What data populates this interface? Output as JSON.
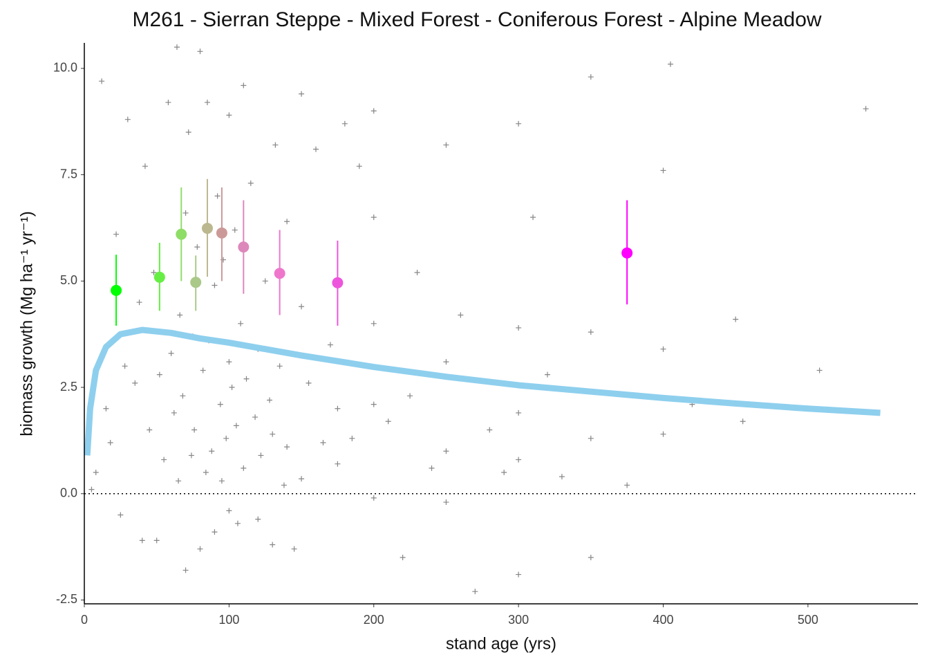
{
  "chart_data": {
    "type": "scatter",
    "title": "M261 - Sierran Steppe - Mixed Forest - Coniferous Forest - Alpine Meadow",
    "xlabel": "stand age (yrs)",
    "ylabel": "biomass growth (Mg ha⁻¹ yr⁻¹)",
    "xlim": [
      0,
      576
    ],
    "ylim": [
      -2.59,
      10.6
    ],
    "xticks": [
      0,
      100,
      200,
      300,
      400,
      500
    ],
    "yticks": [
      -2.5,
      {
        "value": 0,
        "label": "0.0"
      },
      2.5,
      {
        "value": 5,
        "label": "5.0"
      },
      7.5,
      {
        "value": 10,
        "label": "10.0"
      }
    ],
    "grid": false,
    "color": "#333333",
    "x": [
      5,
      8,
      12,
      15,
      18,
      22,
      25,
      28,
      30,
      35,
      38,
      40,
      42,
      45,
      48,
      50,
      52,
      55,
      58,
      60,
      62,
      64,
      65,
      66,
      68,
      70,
      70,
      72,
      74,
      75,
      76,
      78,
      80,
      80,
      82,
      84,
      85,
      86,
      88,
      90,
      90,
      92,
      94,
      95,
      96,
      98,
      100,
      100,
      100,
      102,
      104,
      105,
      106,
      108,
      110,
      110,
      112,
      115,
      118,
      120,
      120,
      122,
      125,
      128,
      130,
      130,
      132,
      135,
      138,
      140,
      140,
      145,
      150,
      150,
      150,
      155,
      160,
      165,
      170,
      175,
      175,
      180,
      185,
      190,
      200,
      200,
      200,
      200,
      200,
      210,
      220,
      225,
      230,
      240,
      250,
      250,
      250,
      250,
      260,
      270,
      280,
      290,
      300,
      300,
      300,
      300,
      300,
      310,
      320,
      330,
      350,
      350,
      350,
      350,
      375,
      400,
      400,
      400,
      405,
      420,
      450,
      455,
      508,
      540
    ],
    "values": [
      0.1,
      0.5,
      9.7,
      2.0,
      1.2,
      6.1,
      -0.5,
      3.0,
      8.8,
      2.6,
      4.5,
      -1.1,
      7.7,
      1.5,
      5.2,
      -1.1,
      2.8,
      0.8,
      9.2,
      3.3,
      1.9,
      10.5,
      0.3,
      4.2,
      2.3,
      6.6,
      -1.8,
      8.5,
      0.9,
      3.7,
      1.5,
      5.8,
      -1.3,
      10.4,
      2.9,
      0.5,
      9.2,
      3.6,
      1.0,
      4.9,
      -0.9,
      7.0,
      2.1,
      0.3,
      5.5,
      1.3,
      8.9,
      3.1,
      -0.4,
      2.5,
      6.2,
      1.6,
      -0.7,
      4.0,
      9.6,
      0.6,
      2.7,
      7.3,
      1.8,
      -0.6,
      3.4,
      0.9,
      5.0,
      2.2,
      -1.2,
      1.4,
      8.2,
      3.0,
      0.2,
      6.4,
      1.1,
      -1.3,
      4.4,
      0.35,
      9.4,
      2.6,
      8.1,
      1.2,
      3.5,
      0.7,
      2.0,
      8.7,
      1.3,
      7.7,
      -0.1,
      2.1,
      4.0,
      6.5,
      9.0,
      1.7,
      -1.5,
      2.3,
      5.2,
      0.6,
      -0.2,
      1.0,
      3.1,
      8.2,
      4.2,
      -2.3,
      1.5,
      0.5,
      -1.9,
      0.8,
      1.9,
      3.9,
      8.7,
      6.5,
      2.8,
      0.4,
      -1.5,
      1.3,
      3.8,
      9.8,
      0.2,
      1.4,
      3.4,
      7.6,
      10.1,
      2.1,
      4.1,
      1.7,
      2.9,
      9.05
    ],
    "means": {
      "x": [
        22,
        52,
        67,
        77,
        85,
        95,
        110,
        135,
        175,
        375
      ],
      "values": [
        4.78,
        5.09,
        6.1,
        4.97,
        6.24,
        6.13,
        5.8,
        5.18,
        4.96,
        5.66
      ],
      "lower": [
        3.95,
        4.3,
        5.0,
        4.3,
        5.1,
        5.0,
        4.7,
        4.2,
        3.95,
        4.45
      ],
      "upper": [
        5.62,
        5.9,
        7.2,
        5.6,
        7.4,
        7.2,
        6.9,
        6.2,
        5.95,
        6.9
      ],
      "colors": [
        "#00ff00",
        "#66ee44",
        "#8edd66",
        "#aac888",
        "#bbb890",
        "#cc9999",
        "#dd88bb",
        "#ee77cc",
        "#ee55dd",
        "#ff00ff"
      ]
    },
    "fit": {
      "color": "#8ecfee",
      "x": [
        2,
        4,
        8,
        15,
        25,
        40,
        60,
        80,
        100,
        150,
        200,
        250,
        300,
        350,
        400,
        450,
        500,
        550
      ],
      "values": [
        0.9,
        2.0,
        2.9,
        3.45,
        3.75,
        3.85,
        3.78,
        3.65,
        3.55,
        3.25,
        2.98,
        2.75,
        2.55,
        2.4,
        2.25,
        2.12,
        2.0,
        1.9
      ]
    },
    "hline": 0
  }
}
